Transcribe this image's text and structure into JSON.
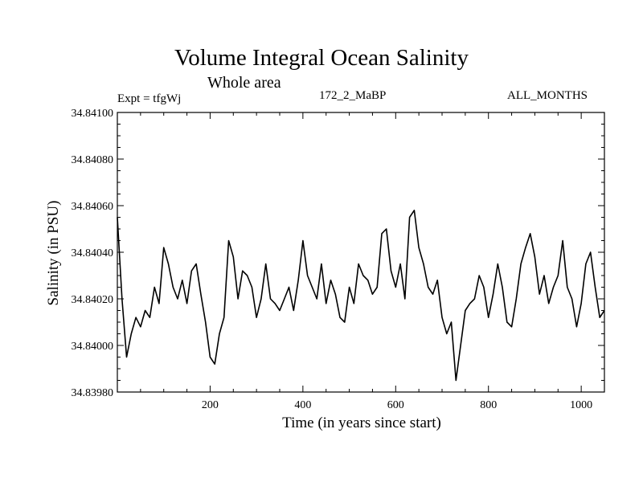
{
  "chart_data": {
    "type": "line",
    "title": "Volume Integral Ocean Salinity",
    "subtitle": "Whole area",
    "experiment_label": "Expt = tfgWj",
    "run_label": "172_2_MaBP",
    "period_label": "ALL_MONTHS",
    "xlabel": "Time (in years since start)",
    "ylabel": "Salinity (in PSU)",
    "xlim": [
      0,
      1050
    ],
    "ylim": [
      34.8398,
      34.841
    ],
    "x_ticks": [
      200,
      400,
      600,
      800,
      1000
    ],
    "y_ticks": [
      "34.83980",
      "34.84000",
      "34.84020",
      "34.84040",
      "34.84060",
      "34.84080",
      "34.84100"
    ],
    "grid": false,
    "series": [
      {
        "name": "Salinity",
        "x": [
          0,
          10,
          20,
          30,
          40,
          50,
          60,
          70,
          80,
          90,
          100,
          110,
          120,
          130,
          140,
          150,
          160,
          170,
          180,
          190,
          200,
          210,
          220,
          230,
          240,
          250,
          260,
          270,
          280,
          290,
          300,
          310,
          320,
          330,
          340,
          350,
          360,
          370,
          380,
          390,
          400,
          410,
          420,
          430,
          440,
          450,
          460,
          470,
          480,
          490,
          500,
          510,
          520,
          530,
          540,
          550,
          560,
          570,
          580,
          590,
          600,
          610,
          620,
          630,
          640,
          650,
          660,
          670,
          680,
          690,
          700,
          710,
          720,
          730,
          740,
          750,
          760,
          770,
          780,
          790,
          800,
          810,
          820,
          830,
          840,
          850,
          860,
          870,
          880,
          890,
          900,
          910,
          920,
          930,
          940,
          950,
          960,
          970,
          980,
          990,
          1000,
          1010,
          1020,
          1030,
          1040,
          1050
        ],
        "values": [
          34.84055,
          34.8402,
          34.83995,
          34.84005,
          34.84012,
          34.84008,
          34.84015,
          34.84012,
          34.84025,
          34.84018,
          34.84042,
          34.84035,
          34.84025,
          34.8402,
          34.84028,
          34.84018,
          34.84032,
          34.84035,
          34.84022,
          34.8401,
          34.83995,
          34.83992,
          34.84005,
          34.84012,
          34.84045,
          34.84038,
          34.8402,
          34.84032,
          34.8403,
          34.84025,
          34.84012,
          34.8402,
          34.84035,
          34.8402,
          34.84018,
          34.84015,
          34.8402,
          34.84025,
          34.84015,
          34.84028,
          34.84045,
          34.8403,
          34.84025,
          34.8402,
          34.84035,
          34.84018,
          34.84028,
          34.84022,
          34.84012,
          34.8401,
          34.84025,
          34.84018,
          34.84035,
          34.8403,
          34.84028,
          34.84022,
          34.84025,
          34.84048,
          34.8405,
          34.84032,
          34.84025,
          34.84035,
          34.8402,
          34.84055,
          34.84058,
          34.84042,
          34.84035,
          34.84025,
          34.84022,
          34.84028,
          34.84012,
          34.84005,
          34.8401,
          34.83985,
          34.84,
          34.84015,
          34.84018,
          34.8402,
          34.8403,
          34.84025,
          34.84012,
          34.84022,
          34.84035,
          34.84025,
          34.8401,
          34.84008,
          34.8402,
          34.84035,
          34.84042,
          34.84048,
          34.84038,
          34.84022,
          34.8403,
          34.84018,
          34.84025,
          34.8403,
          34.84045,
          34.84025,
          34.8402,
          34.84008,
          34.84018,
          34.84035,
          34.8404,
          34.84025,
          34.84012,
          34.84015
        ]
      }
    ]
  }
}
